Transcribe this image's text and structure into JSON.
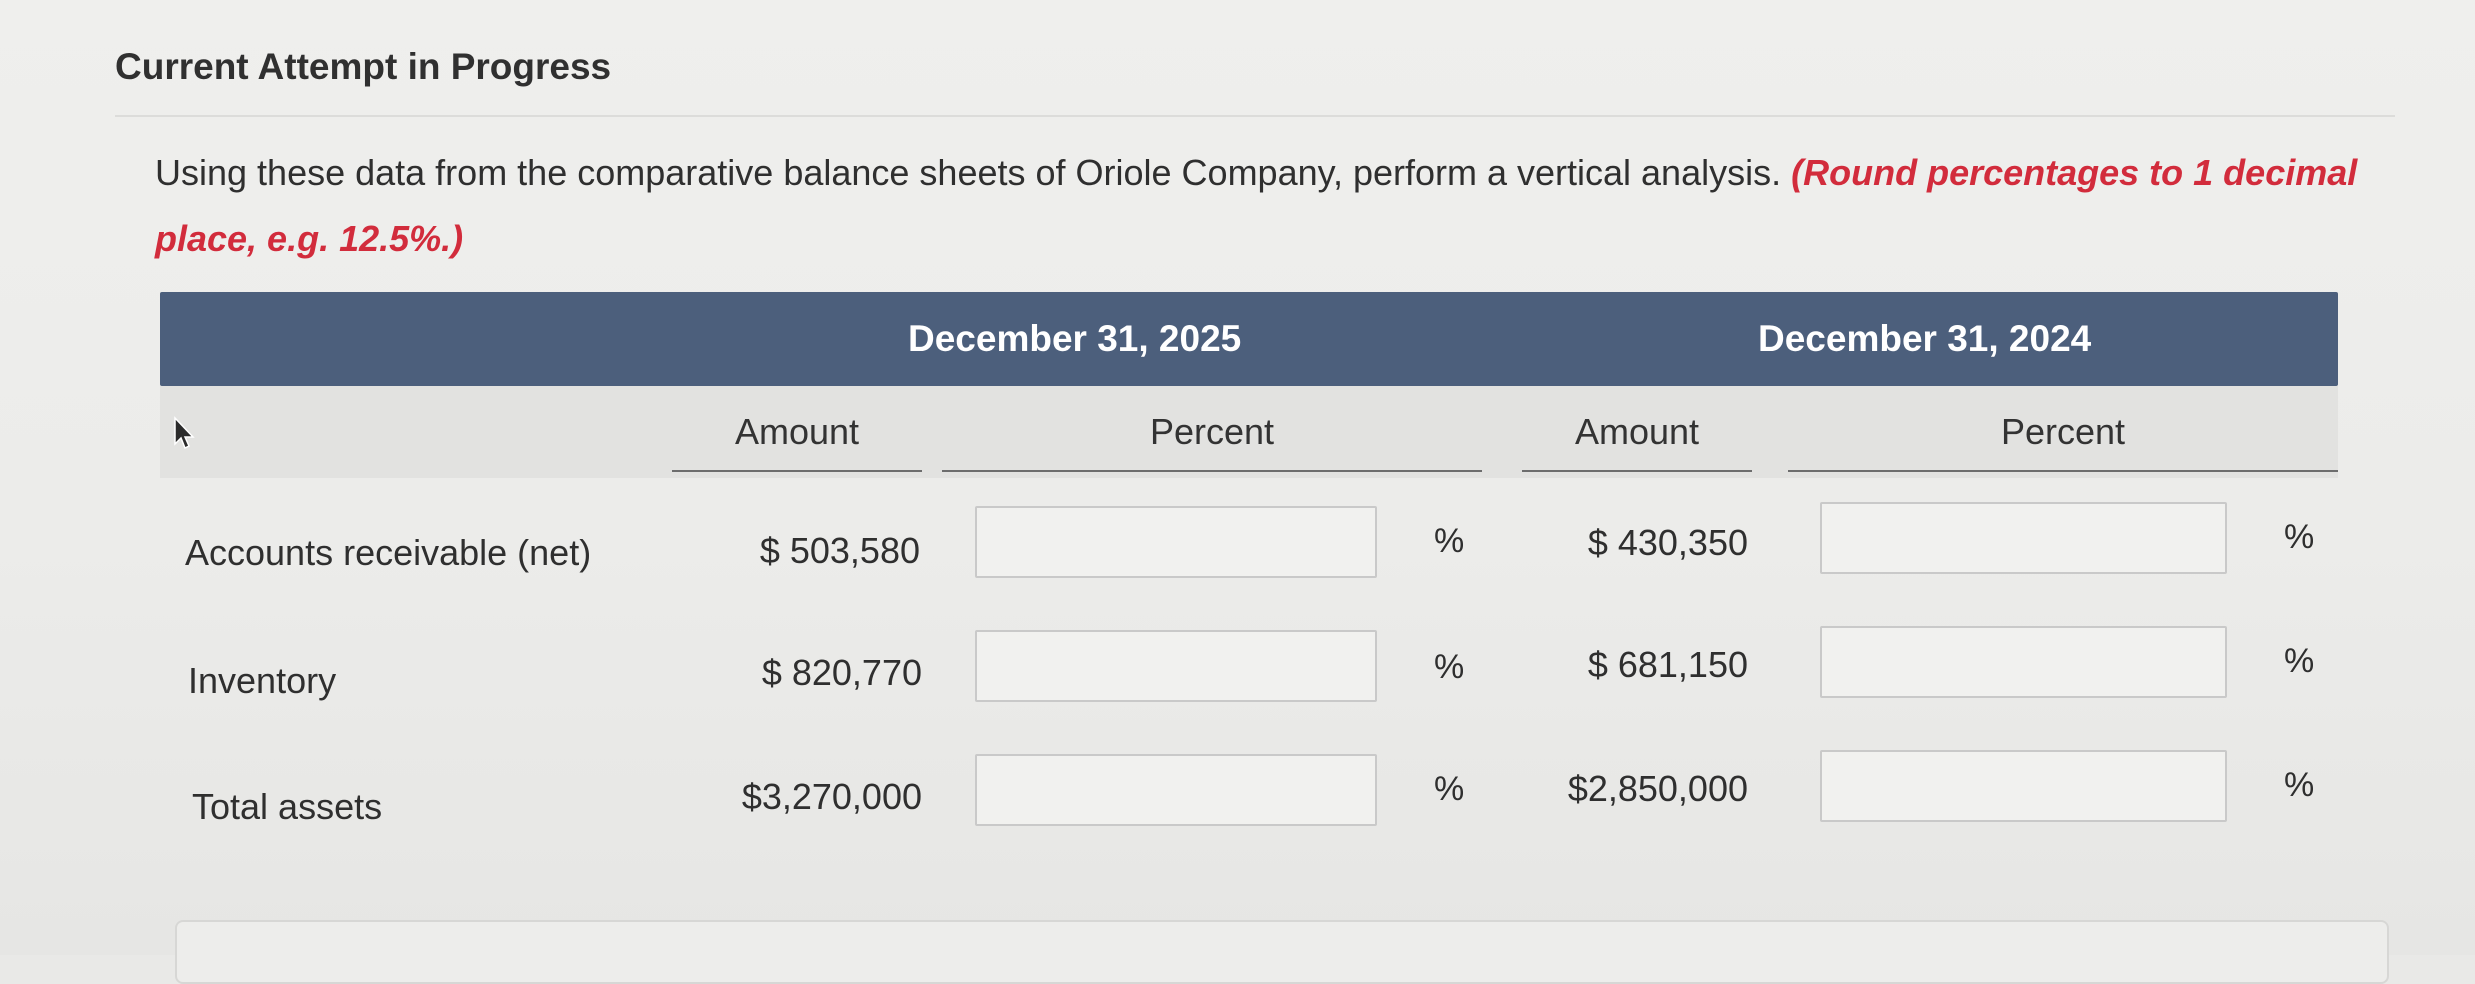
{
  "section_title": "Current Attempt in Progress",
  "prompt": {
    "text": "Using these data from the comparative balance sheets of Oriole Company, perform a vertical analysis.",
    "note": "(Round percentages to 1 decimal place, e.g. 12.5%.)"
  },
  "table": {
    "periods": [
      {
        "label": "December 31, 2025",
        "amount_header": "Amount",
        "percent_header": "Percent"
      },
      {
        "label": "December 31, 2024",
        "amount_header": "Amount",
        "percent_header": "Percent"
      }
    ],
    "rows": [
      {
        "label": "Accounts receivable (net)",
        "amounts": [
          "$ 503,580",
          "$ 430,350"
        ],
        "percents": [
          "",
          ""
        ]
      },
      {
        "label": "Inventory",
        "amounts": [
          "$ 820,770",
          "$ 681,150"
        ],
        "percents": [
          "",
          ""
        ]
      },
      {
        "label": "Total assets",
        "amounts": [
          "$3,270,000",
          "$2,850,000"
        ],
        "percents": [
          "",
          ""
        ]
      }
    ],
    "percent_symbol": "%"
  },
  "colors": {
    "header_band": "#4c5f7c",
    "note_red": "#d22c3c"
  },
  "icons": {
    "pointer": "cursor-arrow-icon"
  }
}
